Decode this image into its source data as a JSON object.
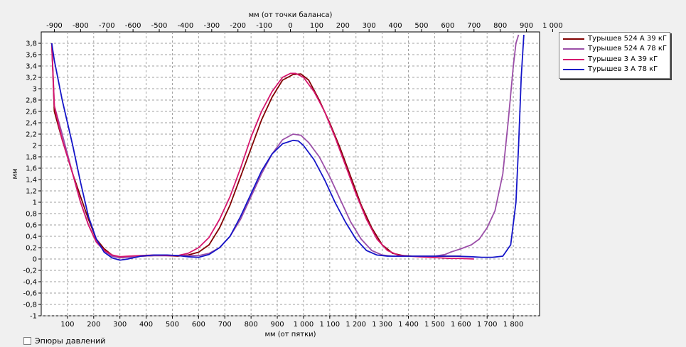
{
  "chart_data": {
    "type": "line",
    "xlabel_bottom": "мм (от пятки)",
    "xlabel_top": "мм (от точки баланса)",
    "ylabel": "мм",
    "xlim": [
      0,
      1900
    ],
    "ylim": [
      -1,
      4
    ],
    "top_axis_offset": 950,
    "bottom_ticks": [
      {
        "value": 100,
        "label": "100"
      },
      {
        "value": 200,
        "label": "200"
      },
      {
        "value": 300,
        "label": "300"
      },
      {
        "value": 400,
        "label": "400"
      },
      {
        "value": 500,
        "label": "500"
      },
      {
        "value": 600,
        "label": "600"
      },
      {
        "value": 700,
        "label": "700"
      },
      {
        "value": 800,
        "label": "800"
      },
      {
        "value": 900,
        "label": "900"
      },
      {
        "value": 1000,
        "label": "1 000"
      },
      {
        "value": 1100,
        "label": "1 100"
      },
      {
        "value": 1200,
        "label": "1 200"
      },
      {
        "value": 1300,
        "label": "1 300"
      },
      {
        "value": 1400,
        "label": "1 400"
      },
      {
        "value": 1500,
        "label": "1 500"
      },
      {
        "value": 1600,
        "label": "1 600"
      },
      {
        "value": 1700,
        "label": "1 700"
      },
      {
        "value": 1800,
        "label": "1 800"
      }
    ],
    "top_ticks": [
      {
        "value": -900,
        "label": "-900"
      },
      {
        "value": -800,
        "label": "-800"
      },
      {
        "value": -700,
        "label": "-700"
      },
      {
        "value": -600,
        "label": "-600"
      },
      {
        "value": -500,
        "label": "-500"
      },
      {
        "value": -400,
        "label": "-400"
      },
      {
        "value": -300,
        "label": "-300"
      },
      {
        "value": -200,
        "label": "-200"
      },
      {
        "value": -100,
        "label": "-100"
      },
      {
        "value": 0,
        "label": "0"
      },
      {
        "value": 100,
        "label": "100"
      },
      {
        "value": 200,
        "label": "200"
      },
      {
        "value": 300,
        "label": "300"
      },
      {
        "value": 400,
        "label": "400"
      },
      {
        "value": 500,
        "label": "500"
      },
      {
        "value": 600,
        "label": "600"
      },
      {
        "value": 700,
        "label": "700"
      },
      {
        "value": 800,
        "label": "800"
      },
      {
        "value": 900,
        "label": "900"
      },
      {
        "value": 1000,
        "label": "1 000"
      }
    ],
    "y_ticks": [
      {
        "value": 3.8,
        "label": "3,8"
      },
      {
        "value": 3.6,
        "label": "3,6"
      },
      {
        "value": 3.4,
        "label": "3,4"
      },
      {
        "value": 3.2,
        "label": "3,2"
      },
      {
        "value": 3.0,
        "label": "3"
      },
      {
        "value": 2.8,
        "label": "2,8"
      },
      {
        "value": 2.6,
        "label": "2,6"
      },
      {
        "value": 2.4,
        "label": "2,4"
      },
      {
        "value": 2.2,
        "label": "2,2"
      },
      {
        "value": 2.0,
        "label": "2"
      },
      {
        "value": 1.8,
        "label": "1,8"
      },
      {
        "value": 1.6,
        "label": "1,6"
      },
      {
        "value": 1.4,
        "label": "1,4"
      },
      {
        "value": 1.2,
        "label": "1,2"
      },
      {
        "value": 1.0,
        "label": "1"
      },
      {
        "value": 0.8,
        "label": "0,8"
      },
      {
        "value": 0.6,
        "label": "0,6"
      },
      {
        "value": 0.4,
        "label": "0,4"
      },
      {
        "value": 0.2,
        "label": "0,2"
      },
      {
        "value": 0.0,
        "label": "0"
      },
      {
        "value": -0.2,
        "label": "-0,2"
      },
      {
        "value": -0.4,
        "label": "-0,4"
      },
      {
        "value": -0.6,
        "label": "-0,6"
      },
      {
        "value": -0.8,
        "label": "-0,8"
      },
      {
        "value": -1.0,
        "label": "-1"
      }
    ],
    "series": [
      {
        "name": "Турышев 524 А  39 кГ",
        "color": "#800000",
        "x": [
          40,
          50,
          80,
          120,
          150,
          180,
          210,
          240,
          270,
          300,
          330,
          380,
          430,
          480,
          520,
          560,
          600,
          640,
          680,
          720,
          760,
          800,
          840,
          880,
          920,
          960,
          990,
          1020,
          1060,
          1100,
          1140,
          1180,
          1220,
          1260,
          1300,
          1340,
          1380,
          1420,
          1460,
          1500,
          1540,
          1580,
          1600
        ],
        "values": [
          3.8,
          2.6,
          2.1,
          1.5,
          1.1,
          0.7,
          0.35,
          0.18,
          0.07,
          0.03,
          0.04,
          0.05,
          0.06,
          0.06,
          0.05,
          0.07,
          0.12,
          0.25,
          0.55,
          0.95,
          1.45,
          1.95,
          2.45,
          2.85,
          3.15,
          3.25,
          3.26,
          3.15,
          2.8,
          2.4,
          1.95,
          1.45,
          0.95,
          0.55,
          0.25,
          0.1,
          0.06,
          0.05,
          0.05,
          0.05,
          0.05,
          0.05,
          0.05
        ]
      },
      {
        "name": "Турышев 524 А  78 кГ",
        "color": "#9b4fa8",
        "x": [
          40,
          50,
          80,
          120,
          150,
          180,
          210,
          240,
          270,
          300,
          330,
          380,
          430,
          480,
          520,
          560,
          600,
          640,
          680,
          720,
          760,
          800,
          840,
          880,
          920,
          960,
          990,
          1020,
          1060,
          1100,
          1140,
          1180,
          1220,
          1260,
          1300,
          1340,
          1400,
          1460,
          1500,
          1540,
          1560,
          1600,
          1640,
          1670,
          1700,
          1730,
          1760,
          1780,
          1800,
          1810,
          1820
        ],
        "values": [
          3.8,
          2.7,
          2.2,
          1.5,
          1.0,
          0.6,
          0.3,
          0.15,
          0.05,
          0.02,
          0.03,
          0.05,
          0.06,
          0.06,
          0.06,
          0.06,
          0.06,
          0.1,
          0.2,
          0.4,
          0.7,
          1.1,
          1.5,
          1.85,
          2.1,
          2.2,
          2.18,
          2.05,
          1.8,
          1.45,
          1.05,
          0.65,
          0.35,
          0.15,
          0.07,
          0.05,
          0.05,
          0.05,
          0.05,
          0.08,
          0.12,
          0.18,
          0.25,
          0.35,
          0.55,
          0.85,
          1.5,
          2.4,
          3.4,
          3.8,
          3.95
        ]
      },
      {
        "name": "Турышев 3 А  39 кГ",
        "color": "#d6156e",
        "x": [
          40,
          50,
          80,
          120,
          150,
          180,
          210,
          240,
          270,
          300,
          330,
          380,
          430,
          480,
          520,
          560,
          600,
          640,
          680,
          720,
          760,
          800,
          840,
          880,
          920,
          950,
          970,
          1000,
          1040,
          1080,
          1120,
          1160,
          1200,
          1240,
          1280,
          1320,
          1360,
          1400,
          1440,
          1480,
          1520,
          1560,
          1600,
          1650
        ],
        "values": [
          3.8,
          2.7,
          2.1,
          1.5,
          1.0,
          0.6,
          0.3,
          0.15,
          0.07,
          0.04,
          0.05,
          0.06,
          0.07,
          0.06,
          0.06,
          0.1,
          0.2,
          0.38,
          0.7,
          1.1,
          1.6,
          2.15,
          2.6,
          2.95,
          3.2,
          3.27,
          3.27,
          3.2,
          2.95,
          2.6,
          2.15,
          1.65,
          1.15,
          0.7,
          0.35,
          0.15,
          0.07,
          0.05,
          0.04,
          0.03,
          0.02,
          0.01,
          0.01,
          0.0
        ]
      },
      {
        "name": "Турышев 3 А  78 кГ",
        "color": "#1515c8",
        "x": [
          40,
          50,
          80,
          120,
          150,
          180,
          210,
          240,
          270,
          300,
          330,
          380,
          430,
          480,
          520,
          560,
          600,
          640,
          680,
          720,
          760,
          800,
          840,
          880,
          920,
          960,
          980,
          1000,
          1040,
          1080,
          1120,
          1160,
          1200,
          1240,
          1280,
          1320,
          1360,
          1400,
          1460,
          1520,
          1580,
          1640,
          1680,
          1720,
          1760,
          1790,
          1810,
          1820,
          1830,
          1840
        ],
        "values": [
          3.8,
          3.5,
          2.8,
          2.0,
          1.35,
          0.75,
          0.35,
          0.12,
          0.02,
          -0.02,
          0.0,
          0.05,
          0.07,
          0.07,
          0.06,
          0.04,
          0.03,
          0.08,
          0.2,
          0.4,
          0.75,
          1.15,
          1.55,
          1.85,
          2.03,
          2.09,
          2.08,
          2.0,
          1.75,
          1.4,
          1.0,
          0.65,
          0.35,
          0.15,
          0.07,
          0.05,
          0.05,
          0.05,
          0.05,
          0.05,
          0.05,
          0.04,
          0.03,
          0.03,
          0.05,
          0.25,
          1.0,
          2.0,
          3.2,
          3.95
        ]
      }
    ]
  },
  "legend": {
    "items": [
      {
        "label": "Турышев 524 А  39 кГ",
        "color": "#800000"
      },
      {
        "label": "Турышев 524 А  78 кГ",
        "color": "#9b4fa8"
      },
      {
        "label": "Турышев 3 А  39 кГ",
        "color": "#d6156e"
      },
      {
        "label": "Турышев 3 А  78 кГ",
        "color": "#1515c8"
      }
    ]
  },
  "controls": {
    "pressure_label": "Эпюры давлений"
  }
}
